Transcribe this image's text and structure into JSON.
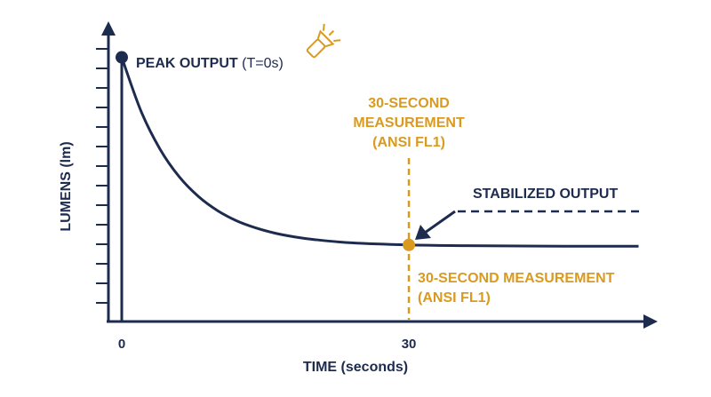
{
  "chart_data": {
    "type": "line",
    "x_label": "TIME (seconds)",
    "y_label": "LUMENS (lm)",
    "x": [
      0,
      2,
      4,
      6,
      8,
      10,
      12,
      14,
      16,
      18,
      20,
      24,
      30,
      36,
      42,
      48,
      54
    ],
    "series": [
      {
        "color": "#1d2b4f",
        "values": [
          100,
          79.6,
          65,
          54.5,
          47,
          41.6,
          37.7,
          35,
          33,
          31.6,
          30.6,
          29.3,
          28.5,
          28.2,
          28.1,
          28,
          28
        ]
      }
    ],
    "xlim": [
      0,
      54
    ],
    "ylim": [
      0,
      110
    ],
    "xticks": [
      0,
      30
    ],
    "annotations": {
      "peak": "PEAK OUTPUT",
      "peak_note": "(T=0s)",
      "measurement_top": [
        "30-SECOND",
        "MEASUREMENT",
        "(ANSI FL1)"
      ],
      "stabilized": "STABILIZED OUTPUT",
      "measurement_bottom": [
        "30-SECOND MEASUREMENT",
        "(ANSI FL1)"
      ]
    },
    "accent_color": "#d99a1f"
  }
}
